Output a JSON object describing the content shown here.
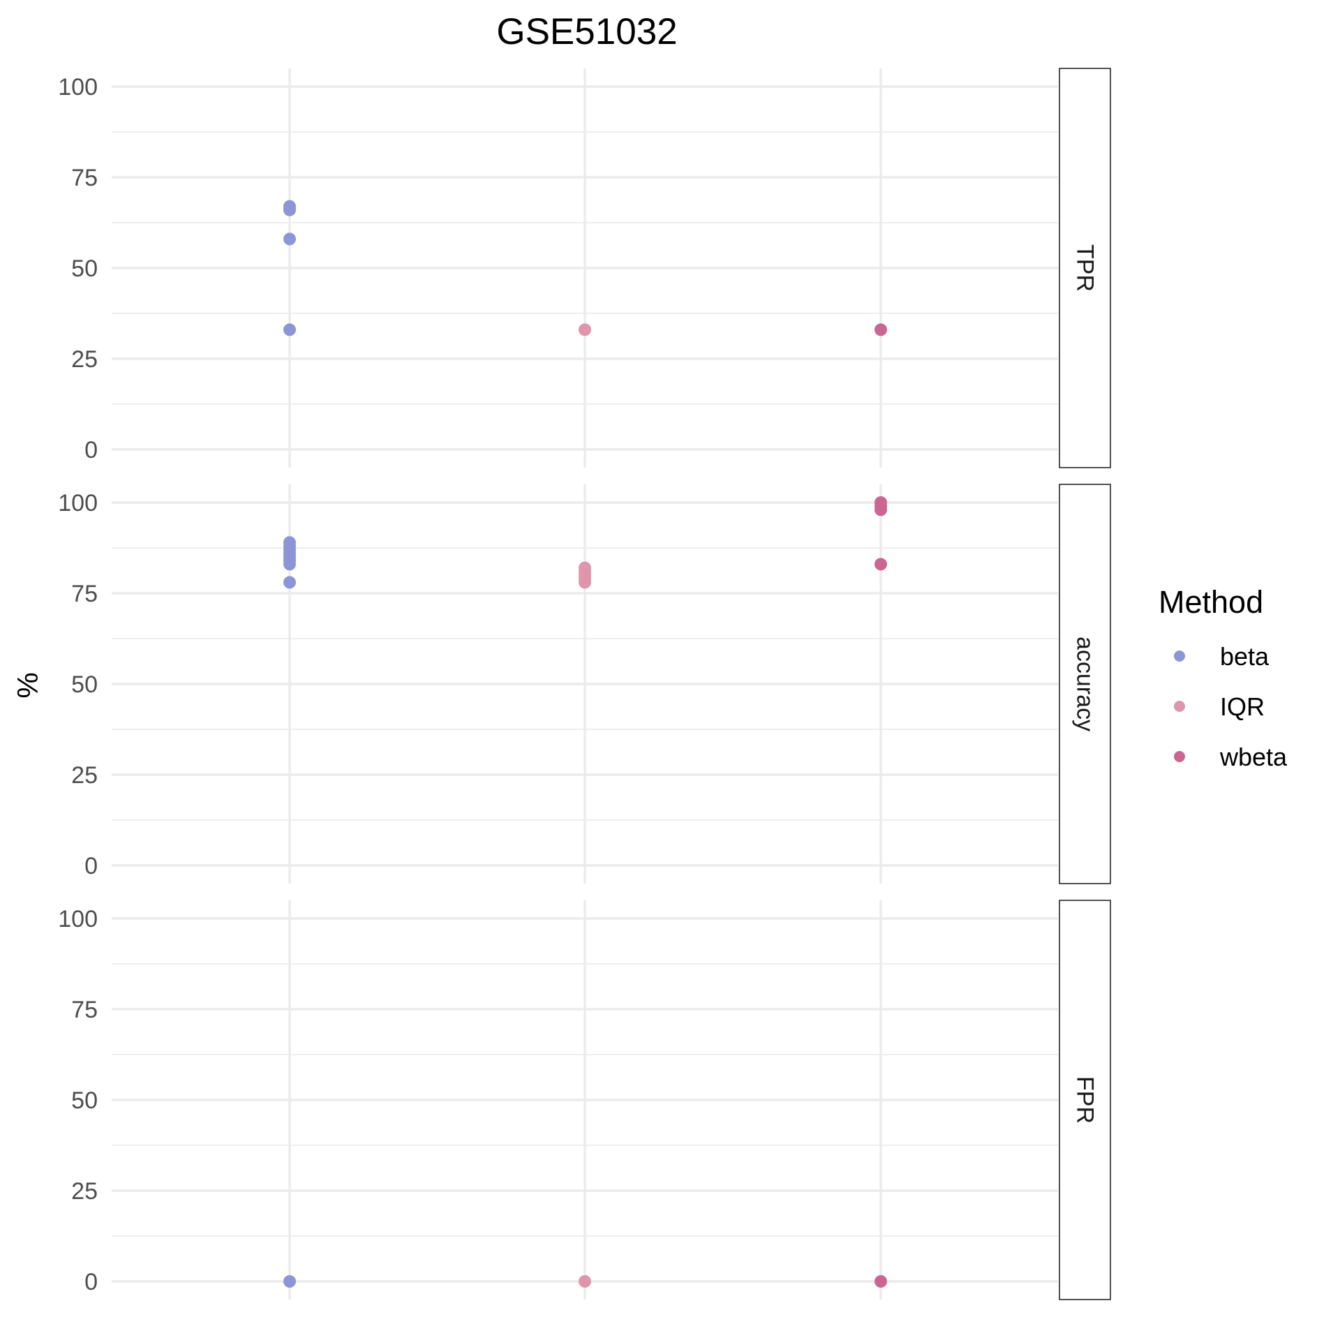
{
  "chart_data": {
    "type": "scatter",
    "title": "GSE51032",
    "ylabel": "%",
    "xlabel": "",
    "ylim": [
      0,
      100
    ],
    "yticks": [
      0,
      25,
      50,
      75,
      100
    ],
    "methods": [
      "beta",
      "IQR",
      "wbeta"
    ],
    "colors": {
      "beta": "#8c96d7",
      "IQR": "#df96ad",
      "wbeta": "#cb6692"
    },
    "legend": {
      "title": "Method",
      "position": "right"
    },
    "grid": true,
    "panels": [
      {
        "name": "TPR",
        "series": [
          {
            "name": "beta",
            "values": [
              33,
              58,
              66,
              66.5,
              67
            ]
          },
          {
            "name": "IQR",
            "values": [
              33
            ]
          },
          {
            "name": "wbeta",
            "values": [
              33
            ]
          }
        ]
      },
      {
        "name": "accuracy",
        "series": [
          {
            "name": "beta",
            "values": [
              78,
              83,
              84,
              85,
              86,
              87,
              88,
              89
            ]
          },
          {
            "name": "IQR",
            "values": [
              78,
              79,
              80,
              81,
              82
            ]
          },
          {
            "name": "wbeta",
            "values": [
              83,
              98,
              99,
              100
            ]
          }
        ]
      },
      {
        "name": "FPR",
        "series": [
          {
            "name": "beta",
            "values": [
              0
            ]
          },
          {
            "name": "IQR",
            "values": [
              0
            ]
          },
          {
            "name": "wbeta",
            "values": [
              0
            ]
          }
        ]
      }
    ]
  }
}
